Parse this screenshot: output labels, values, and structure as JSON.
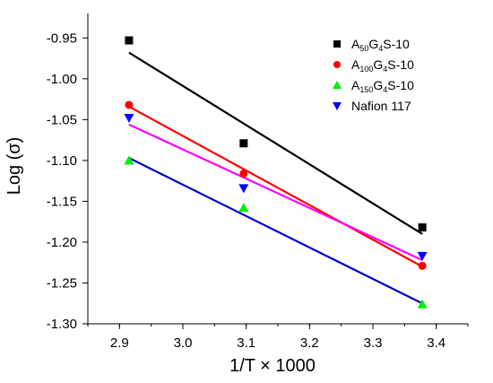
{
  "chart_data": {
    "type": "scatter",
    "xlabel": "1/T × 1000",
    "ylabel": "Log (σ)",
    "xlim": [
      2.85,
      3.45
    ],
    "ylim": [
      -1.3,
      -0.92
    ],
    "xticks": [
      2.9,
      3.0,
      3.1,
      3.2,
      3.3,
      3.4
    ],
    "xtick_labels": [
      "2.9",
      "3.0",
      "3.1",
      "3.2",
      "3.3",
      "3.4"
    ],
    "yticks": [
      -1.3,
      -1.25,
      -1.2,
      -1.15,
      -1.1,
      -1.05,
      -1.0,
      -0.95
    ],
    "ytick_labels": [
      "-1.30",
      "-1.25",
      "-1.20",
      "-1.15",
      "-1.10",
      "-1.05",
      "-1.00",
      "-0.95"
    ],
    "grid": false,
    "legend_position": "top-right",
    "series": [
      {
        "label_parts": [
          {
            "t": "A",
            "sub": false
          },
          {
            "t": "50",
            "sub": true
          },
          {
            "t": "G",
            "sub": false
          },
          {
            "t": "4",
            "sub": true
          },
          {
            "t": "S-10",
            "sub": false
          }
        ],
        "marker": "square",
        "marker_color": "#000000",
        "line_color": "#000000",
        "x": [
          2.915,
          3.096,
          3.378
        ],
        "y": [
          -0.953,
          -1.079,
          -1.182
        ],
        "fit": {
          "x": [
            2.915,
            3.378
          ],
          "y": [
            -0.968,
            -1.19
          ]
        }
      },
      {
        "label_parts": [
          {
            "t": "A",
            "sub": false
          },
          {
            "t": "100",
            "sub": true
          },
          {
            "t": "G",
            "sub": false
          },
          {
            "t": "4",
            "sub": true
          },
          {
            "t": "S-10",
            "sub": false
          }
        ],
        "marker": "circle",
        "marker_color": "#ff0000",
        "line_color": "#ff0000",
        "x": [
          2.915,
          3.096,
          3.378
        ],
        "y": [
          -1.032,
          -1.116,
          -1.229
        ],
        "fit": {
          "x": [
            2.915,
            3.378
          ],
          "y": [
            -1.034,
            -1.23
          ]
        }
      },
      {
        "label_parts": [
          {
            "t": "A",
            "sub": false
          },
          {
            "t": "150",
            "sub": true
          },
          {
            "t": "G",
            "sub": false
          },
          {
            "t": "4",
            "sub": true
          },
          {
            "t": "S-10",
            "sub": false
          }
        ],
        "marker": "triangle-up",
        "marker_color": "#00ee00",
        "line_color": "#0000cc",
        "x": [
          2.915,
          3.096,
          3.378
        ],
        "y": [
          -1.1,
          -1.158,
          -1.276
        ],
        "fit": {
          "x": [
            2.915,
            3.378
          ],
          "y": [
            -1.097,
            -1.275
          ]
        }
      },
      {
        "label_parts": [
          {
            "t": "Nafion 117",
            "sub": false
          }
        ],
        "marker": "triangle-down",
        "marker_color": "#0000ff",
        "line_color": "#ff00ff",
        "x": [
          2.915,
          3.096,
          3.378
        ],
        "y": [
          -1.048,
          -1.134,
          -1.217
        ],
        "fit": {
          "x": [
            2.915,
            3.378
          ],
          "y": [
            -1.056,
            -1.222
          ]
        }
      }
    ]
  }
}
